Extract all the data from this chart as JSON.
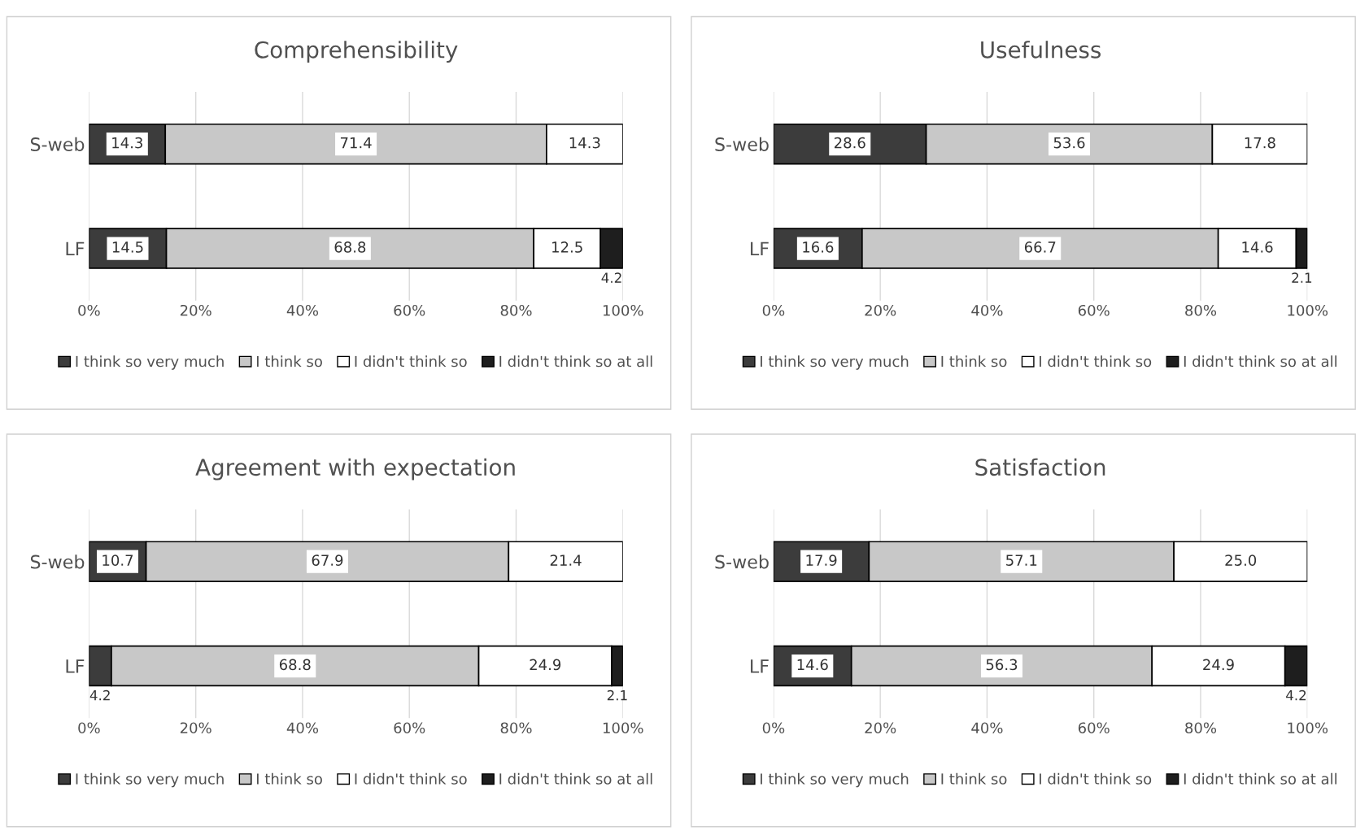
{
  "chart_data": [
    {
      "type": "bar",
      "title": "Comprehensibility",
      "orientation": "horizontal",
      "stacked": true,
      "categories": [
        "S-web",
        "LF"
      ],
      "xlim": [
        0,
        100
      ],
      "xticks": [
        {
          "value": 0,
          "label": "0%"
        },
        {
          "value": 20,
          "label": "20%"
        },
        {
          "value": 40,
          "label": "40%"
        },
        {
          "value": 60,
          "label": "60%"
        },
        {
          "value": 80,
          "label": "80%"
        },
        {
          "value": 100,
          "label": "100%"
        }
      ],
      "grid": "x",
      "legend": "bottom",
      "series": [
        {
          "name": "I think so very much",
          "color": "#3c3c3c",
          "values": [
            14.3,
            14.5
          ],
          "value_labels": [
            "14.3",
            "14.5"
          ]
        },
        {
          "name": "I think so",
          "color": "#c8c8c8",
          "values": [
            71.4,
            68.8
          ],
          "value_labels": [
            "71.4",
            "68.8"
          ]
        },
        {
          "name": "I didn't think so",
          "color": "#ffffff",
          "values": [
            14.3,
            12.5
          ],
          "value_labels": [
            "14.3",
            "12.5"
          ]
        },
        {
          "name": "I didn't think so at all",
          "color": "#1e1e1e",
          "values": [
            null,
            4.2
          ],
          "value_labels": [
            null,
            "4.2"
          ]
        }
      ]
    },
    {
      "type": "bar",
      "title": "Usefulness",
      "orientation": "horizontal",
      "stacked": true,
      "categories": [
        "S-web",
        "LF"
      ],
      "xlim": [
        0,
        100
      ],
      "xticks": [
        {
          "value": 0,
          "label": "0%"
        },
        {
          "value": 20,
          "label": "20%"
        },
        {
          "value": 40,
          "label": "40%"
        },
        {
          "value": 60,
          "label": "60%"
        },
        {
          "value": 80,
          "label": "80%"
        },
        {
          "value": 100,
          "label": "100%"
        }
      ],
      "grid": "x",
      "legend": "bottom",
      "series": [
        {
          "name": "I think so very much",
          "color": "#3c3c3c",
          "values": [
            28.6,
            16.6
          ],
          "value_labels": [
            "28.6",
            "16.6"
          ]
        },
        {
          "name": "I think so",
          "color": "#c8c8c8",
          "values": [
            53.6,
            66.7
          ],
          "value_labels": [
            "53.6",
            "66.7"
          ]
        },
        {
          "name": "I didn't think so",
          "color": "#ffffff",
          "values": [
            17.8,
            14.6
          ],
          "value_labels": [
            "17.8",
            "14.6"
          ]
        },
        {
          "name": "I didn't think so at all",
          "color": "#1e1e1e",
          "values": [
            null,
            2.1
          ],
          "value_labels": [
            null,
            "2.1"
          ]
        }
      ]
    },
    {
      "type": "bar",
      "title": "Agreement with expectation",
      "orientation": "horizontal",
      "stacked": true,
      "categories": [
        "S-web",
        "LF"
      ],
      "xlim": [
        0,
        100
      ],
      "xticks": [
        {
          "value": 0,
          "label": "0%"
        },
        {
          "value": 20,
          "label": "20%"
        },
        {
          "value": 40,
          "label": "40%"
        },
        {
          "value": 60,
          "label": "60%"
        },
        {
          "value": 80,
          "label": "80%"
        },
        {
          "value": 100,
          "label": "100%"
        }
      ],
      "grid": "x",
      "legend": "bottom",
      "series": [
        {
          "name": "I think so very much",
          "color": "#3c3c3c",
          "values": [
            10.7,
            4.2
          ],
          "value_labels": [
            "10.7",
            "4.2"
          ]
        },
        {
          "name": "I think so",
          "color": "#c8c8c8",
          "values": [
            67.9,
            68.8
          ],
          "value_labels": [
            "67.9",
            "68.8"
          ]
        },
        {
          "name": "I didn't think so",
          "color": "#ffffff",
          "values": [
            21.4,
            24.9
          ],
          "value_labels": [
            "21.4",
            "24.9"
          ]
        },
        {
          "name": "I didn't think so at all",
          "color": "#1e1e1e",
          "values": [
            null,
            2.1
          ],
          "value_labels": [
            null,
            "2.1"
          ]
        }
      ]
    },
    {
      "type": "bar",
      "title": "Satisfaction",
      "orientation": "horizontal",
      "stacked": true,
      "categories": [
        "S-web",
        "LF"
      ],
      "xlim": [
        0,
        100
      ],
      "xticks": [
        {
          "value": 0,
          "label": "0%"
        },
        {
          "value": 20,
          "label": "20%"
        },
        {
          "value": 40,
          "label": "40%"
        },
        {
          "value": 60,
          "label": "60%"
        },
        {
          "value": 80,
          "label": "80%"
        },
        {
          "value": 100,
          "label": "100%"
        }
      ],
      "grid": "x",
      "legend": "bottom",
      "series": [
        {
          "name": "I think so very much",
          "color": "#3c3c3c",
          "values": [
            17.9,
            14.6
          ],
          "value_labels": [
            "17.9",
            "14.6"
          ]
        },
        {
          "name": "I think so",
          "color": "#c8c8c8",
          "values": [
            57.1,
            56.3
          ],
          "value_labels": [
            "57.1",
            "56.3"
          ]
        },
        {
          "name": "I didn't think so",
          "color": "#ffffff",
          "values": [
            25.0,
            24.9
          ],
          "value_labels": [
            "25.0",
            "24.9"
          ]
        },
        {
          "name": "I didn't think so at all",
          "color": "#1e1e1e",
          "values": [
            null,
            4.2
          ],
          "value_labels": [
            null,
            "4.2"
          ]
        }
      ]
    }
  ]
}
